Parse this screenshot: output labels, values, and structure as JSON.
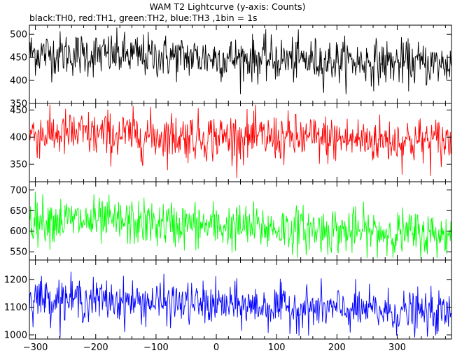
{
  "chart_data": {
    "type": "line",
    "title": "WAM T2 Lightcurve (y-axis: Counts)",
    "subtitle": "black:TH0, red:TH1, green:TH2, blue:TH3 ,1bin = 1s",
    "xlim": [
      -310,
      390
    ],
    "x_ticks": [
      -300,
      -200,
      -100,
      0,
      100,
      200,
      300
    ],
    "panels": [
      {
        "name": "TH0",
        "color": "#000000",
        "ylim": [
          350,
          520
        ],
        "y_ticks": [
          350,
          400,
          450,
          500
        ],
        "mean_start": 460,
        "mean_end": 435,
        "noise_amplitude": 24,
        "data_range": [
          370,
          515
        ]
      },
      {
        "name": "TH1",
        "color": "#ff0000",
        "ylim": [
          318,
          462
        ],
        "y_ticks": [
          350,
          400,
          450
        ],
        "mean_start": 407,
        "mean_end": 392,
        "noise_amplitude": 22,
        "data_range": [
          325,
          460
        ]
      },
      {
        "name": "TH2",
        "color": "#00ff00",
        "ylim": [
          530,
          720
        ],
        "y_ticks": [
          550,
          600,
          650,
          700
        ],
        "mean_start": 630,
        "mean_end": 590,
        "noise_amplitude": 28,
        "data_range": [
          535,
          715
        ]
      },
      {
        "name": "TH3",
        "color": "#0000ff",
        "ylim": [
          985,
          1270
        ],
        "y_ticks": [
          1000,
          1100,
          1200
        ],
        "mean_start": 1135,
        "mean_end": 1075,
        "noise_amplitude": 38,
        "data_range": [
          990,
          1265
        ]
      }
    ]
  }
}
